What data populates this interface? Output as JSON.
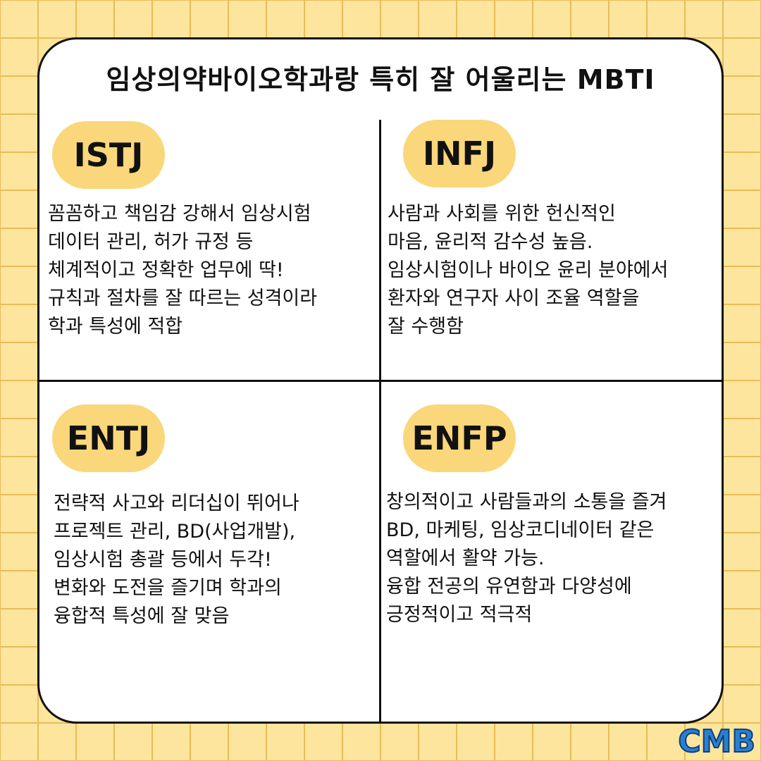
{
  "title": "임상의약바이오학과랑 특히 잘 어울리는 MBTI",
  "quadrants": [
    {
      "type": "ISTJ",
      "text": "꼼꼼하고 책임감 강해서 임상시험\n데이터 관리, 허가 규정 등\n체계적이고 정확한 업무에 딱!\n규칙과 절차를 잘 따르는 성격이라\n학과 특성에 적합"
    },
    {
      "type": "INFJ",
      "text": "사람과 사회를 위한 헌신적인\n마음, 윤리적 감수성 높음.\n임상시험이나 바이오 윤리 분야에서\n환자와 연구자 사이 조율 역할을\n잘 수행함"
    },
    {
      "type": "ENTJ",
      "text": "전략적 사고와 리더십이 뛰어나\n프로젝트 관리, BD(사업개발),\n임상시험 총괄 등에서 두각!\n변화와 도전을 즐기며 학과의\n융합적 특성에 잘 맞음"
    },
    {
      "type": "ENFP",
      "text": "창의적이고 사람들과의 소통을 즐겨\nBD, 마케팅, 임상코디네이터 같은\n역할에서 활약 가능.\n융합 전공의 유연함과 다양성에\n긍정적이고 적극적"
    }
  ],
  "logo": "CMB",
  "colors": {
    "background": "#fde59d",
    "grid": "#e9bc55",
    "badge": "#f9d77a",
    "card": "#ffffff"
  }
}
